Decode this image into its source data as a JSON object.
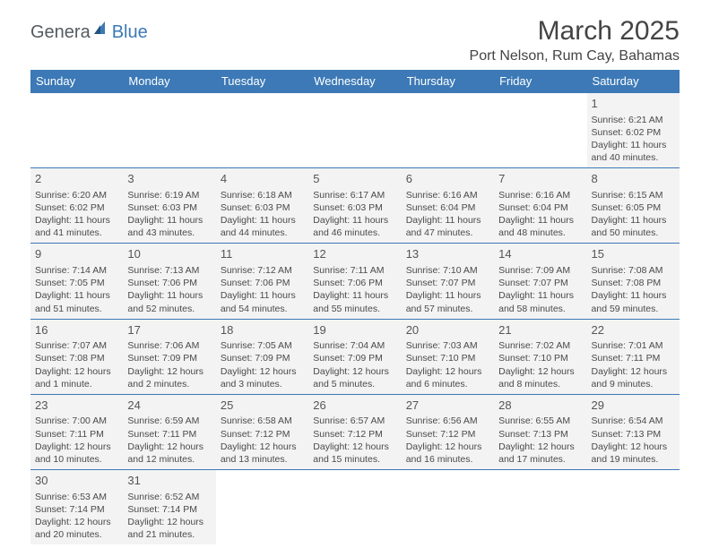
{
  "logo": {
    "part1": "Genera",
    "part2": "Blue"
  },
  "title": "March 2025",
  "location": "Port Nelson, Rum Cay, Bahamas",
  "colors": {
    "header_bg": "#3c79b6",
    "header_fg": "#ffffff",
    "cell_bg": "#f3f3f3",
    "border": "#3c79b6",
    "text": "#4a4a4a",
    "title_text": "#444444",
    "logo_gray": "#555b60",
    "logo_blue": "#3c79b6"
  },
  "days_of_week": [
    "Sunday",
    "Monday",
    "Tuesday",
    "Wednesday",
    "Thursday",
    "Friday",
    "Saturday"
  ],
  "weeks": [
    [
      null,
      null,
      null,
      null,
      null,
      null,
      {
        "n": "1",
        "sr": "Sunrise: 6:21 AM",
        "ss": "Sunset: 6:02 PM",
        "dl": "Daylight: 11 hours and 40 minutes."
      }
    ],
    [
      {
        "n": "2",
        "sr": "Sunrise: 6:20 AM",
        "ss": "Sunset: 6:02 PM",
        "dl": "Daylight: 11 hours and 41 minutes."
      },
      {
        "n": "3",
        "sr": "Sunrise: 6:19 AM",
        "ss": "Sunset: 6:03 PM",
        "dl": "Daylight: 11 hours and 43 minutes."
      },
      {
        "n": "4",
        "sr": "Sunrise: 6:18 AM",
        "ss": "Sunset: 6:03 PM",
        "dl": "Daylight: 11 hours and 44 minutes."
      },
      {
        "n": "5",
        "sr": "Sunrise: 6:17 AM",
        "ss": "Sunset: 6:03 PM",
        "dl": "Daylight: 11 hours and 46 minutes."
      },
      {
        "n": "6",
        "sr": "Sunrise: 6:16 AM",
        "ss": "Sunset: 6:04 PM",
        "dl": "Daylight: 11 hours and 47 minutes."
      },
      {
        "n": "7",
        "sr": "Sunrise: 6:16 AM",
        "ss": "Sunset: 6:04 PM",
        "dl": "Daylight: 11 hours and 48 minutes."
      },
      {
        "n": "8",
        "sr": "Sunrise: 6:15 AM",
        "ss": "Sunset: 6:05 PM",
        "dl": "Daylight: 11 hours and 50 minutes."
      }
    ],
    [
      {
        "n": "9",
        "sr": "Sunrise: 7:14 AM",
        "ss": "Sunset: 7:05 PM",
        "dl": "Daylight: 11 hours and 51 minutes."
      },
      {
        "n": "10",
        "sr": "Sunrise: 7:13 AM",
        "ss": "Sunset: 7:06 PM",
        "dl": "Daylight: 11 hours and 52 minutes."
      },
      {
        "n": "11",
        "sr": "Sunrise: 7:12 AM",
        "ss": "Sunset: 7:06 PM",
        "dl": "Daylight: 11 hours and 54 minutes."
      },
      {
        "n": "12",
        "sr": "Sunrise: 7:11 AM",
        "ss": "Sunset: 7:06 PM",
        "dl": "Daylight: 11 hours and 55 minutes."
      },
      {
        "n": "13",
        "sr": "Sunrise: 7:10 AM",
        "ss": "Sunset: 7:07 PM",
        "dl": "Daylight: 11 hours and 57 minutes."
      },
      {
        "n": "14",
        "sr": "Sunrise: 7:09 AM",
        "ss": "Sunset: 7:07 PM",
        "dl": "Daylight: 11 hours and 58 minutes."
      },
      {
        "n": "15",
        "sr": "Sunrise: 7:08 AM",
        "ss": "Sunset: 7:08 PM",
        "dl": "Daylight: 11 hours and 59 minutes."
      }
    ],
    [
      {
        "n": "16",
        "sr": "Sunrise: 7:07 AM",
        "ss": "Sunset: 7:08 PM",
        "dl": "Daylight: 12 hours and 1 minute."
      },
      {
        "n": "17",
        "sr": "Sunrise: 7:06 AM",
        "ss": "Sunset: 7:09 PM",
        "dl": "Daylight: 12 hours and 2 minutes."
      },
      {
        "n": "18",
        "sr": "Sunrise: 7:05 AM",
        "ss": "Sunset: 7:09 PM",
        "dl": "Daylight: 12 hours and 3 minutes."
      },
      {
        "n": "19",
        "sr": "Sunrise: 7:04 AM",
        "ss": "Sunset: 7:09 PM",
        "dl": "Daylight: 12 hours and 5 minutes."
      },
      {
        "n": "20",
        "sr": "Sunrise: 7:03 AM",
        "ss": "Sunset: 7:10 PM",
        "dl": "Daylight: 12 hours and 6 minutes."
      },
      {
        "n": "21",
        "sr": "Sunrise: 7:02 AM",
        "ss": "Sunset: 7:10 PM",
        "dl": "Daylight: 12 hours and 8 minutes."
      },
      {
        "n": "22",
        "sr": "Sunrise: 7:01 AM",
        "ss": "Sunset: 7:11 PM",
        "dl": "Daylight: 12 hours and 9 minutes."
      }
    ],
    [
      {
        "n": "23",
        "sr": "Sunrise: 7:00 AM",
        "ss": "Sunset: 7:11 PM",
        "dl": "Daylight: 12 hours and 10 minutes."
      },
      {
        "n": "24",
        "sr": "Sunrise: 6:59 AM",
        "ss": "Sunset: 7:11 PM",
        "dl": "Daylight: 12 hours and 12 minutes."
      },
      {
        "n": "25",
        "sr": "Sunrise: 6:58 AM",
        "ss": "Sunset: 7:12 PM",
        "dl": "Daylight: 12 hours and 13 minutes."
      },
      {
        "n": "26",
        "sr": "Sunrise: 6:57 AM",
        "ss": "Sunset: 7:12 PM",
        "dl": "Daylight: 12 hours and 15 minutes."
      },
      {
        "n": "27",
        "sr": "Sunrise: 6:56 AM",
        "ss": "Sunset: 7:12 PM",
        "dl": "Daylight: 12 hours and 16 minutes."
      },
      {
        "n": "28",
        "sr": "Sunrise: 6:55 AM",
        "ss": "Sunset: 7:13 PM",
        "dl": "Daylight: 12 hours and 17 minutes."
      },
      {
        "n": "29",
        "sr": "Sunrise: 6:54 AM",
        "ss": "Sunset: 7:13 PM",
        "dl": "Daylight: 12 hours and 19 minutes."
      }
    ],
    [
      {
        "n": "30",
        "sr": "Sunrise: 6:53 AM",
        "ss": "Sunset: 7:14 PM",
        "dl": "Daylight: 12 hours and 20 minutes."
      },
      {
        "n": "31",
        "sr": "Sunrise: 6:52 AM",
        "ss": "Sunset: 7:14 PM",
        "dl": "Daylight: 12 hours and 21 minutes."
      },
      null,
      null,
      null,
      null,
      null
    ]
  ]
}
